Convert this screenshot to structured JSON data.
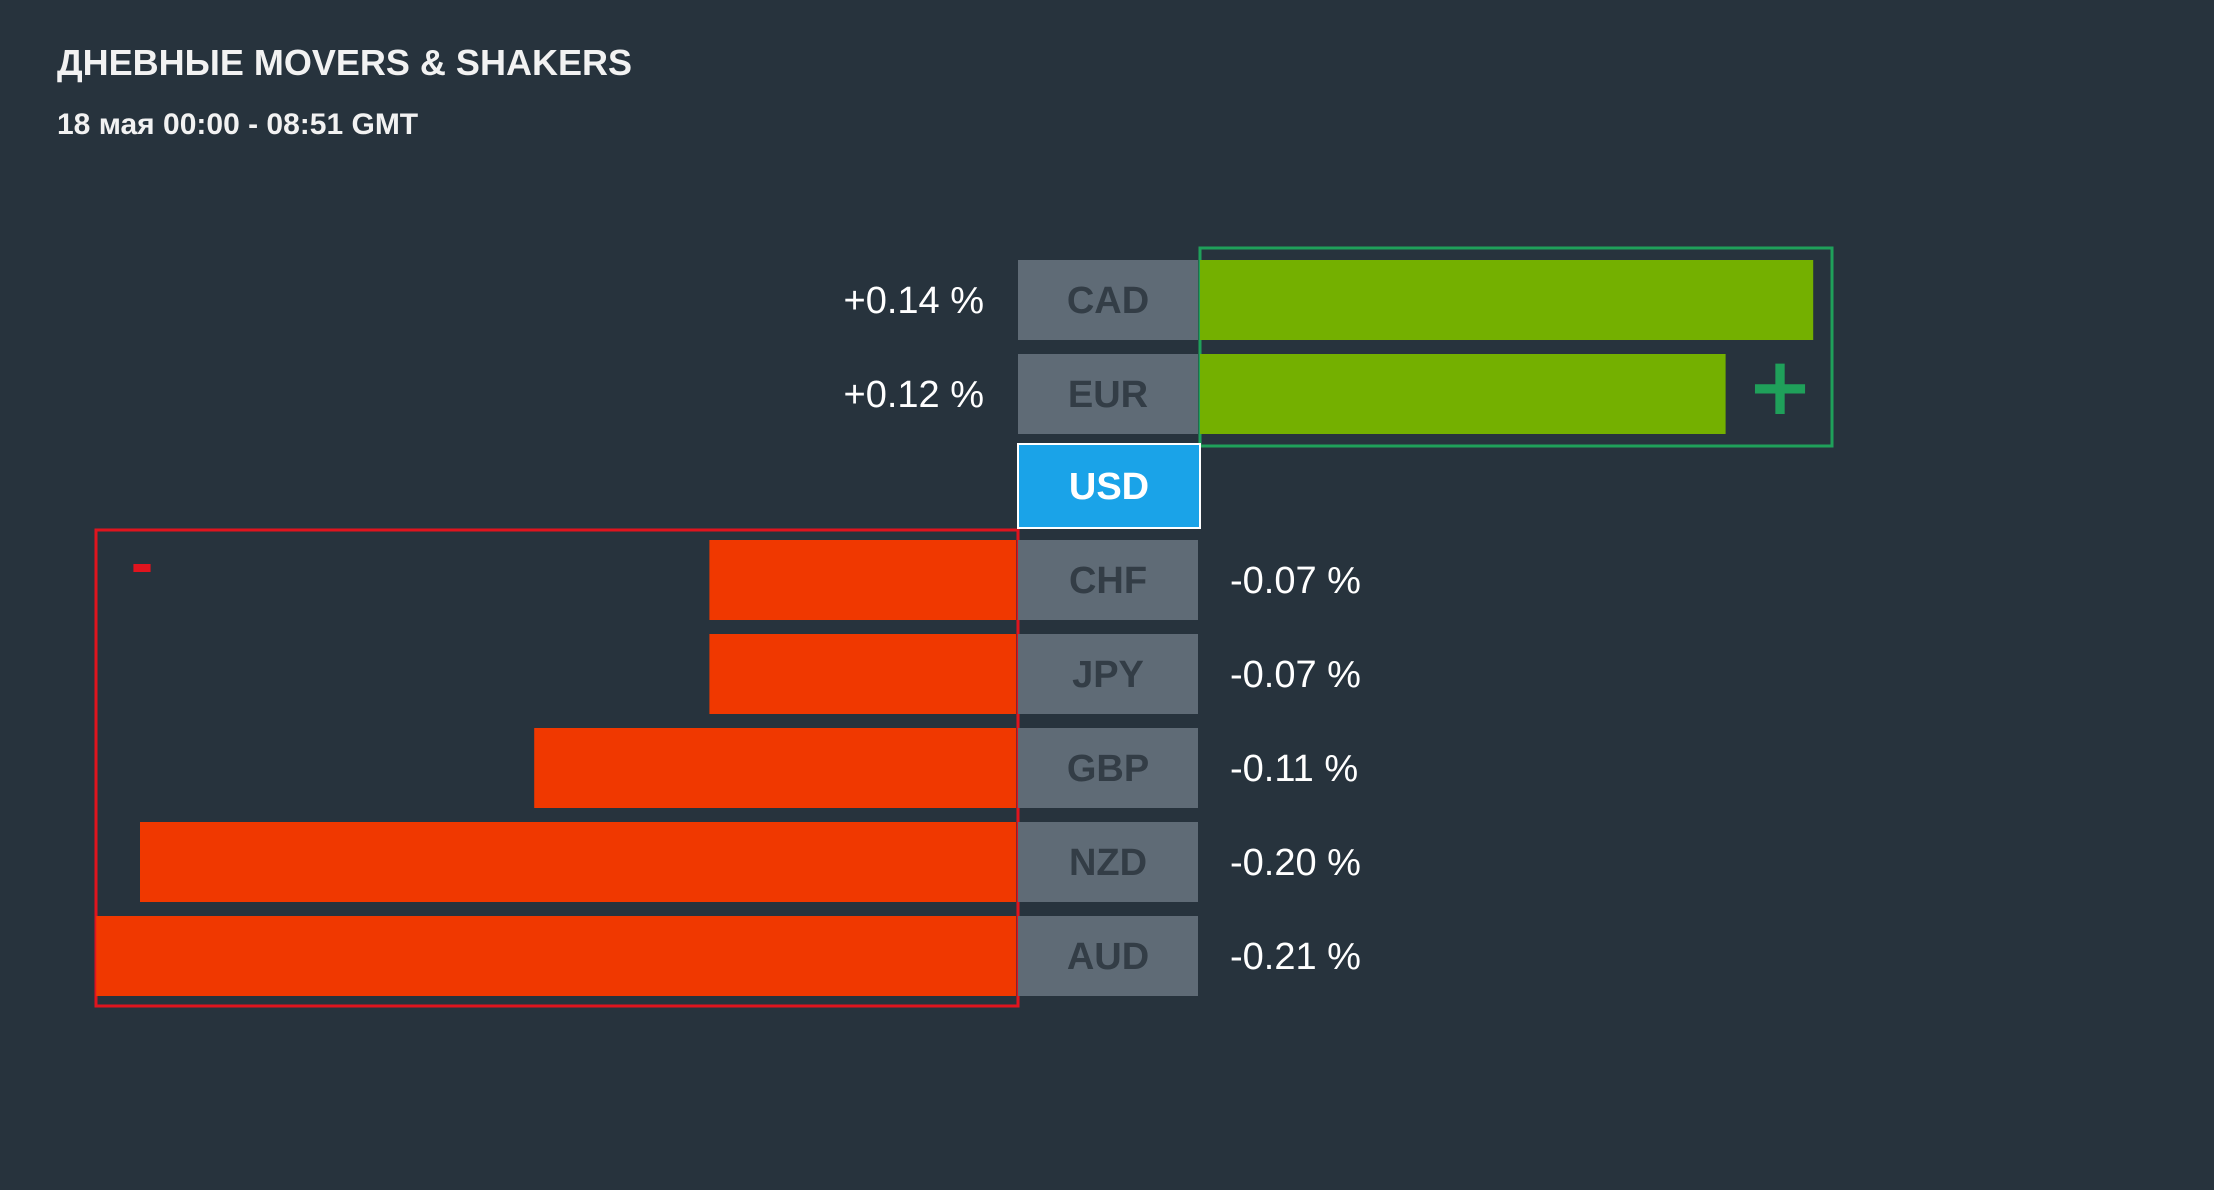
{
  "header": {
    "title": "ДНЕВНЫЕ MOVERS & SHAKERS",
    "subtitle": "18 мая 00:00 - 08:51 GMT"
  },
  "chart_data": {
    "type": "bar",
    "orientation": "horizontal-diverging",
    "base_currency": "USD",
    "unit": "%",
    "categories": [
      "CAD",
      "EUR",
      "CHF",
      "JPY",
      "GBP",
      "NZD",
      "AUD"
    ],
    "values": [
      0.14,
      0.12,
      -0.07,
      -0.07,
      -0.11,
      -0.2,
      -0.21
    ],
    "value_labels": [
      "+0.14 %",
      "+0.12 %",
      "-0.07 %",
      "-0.07 %",
      "-0.11 %",
      "-0.20 %",
      "-0.21 %"
    ],
    "positive_marker": "+",
    "negative_marker": "-",
    "colors": {
      "background": "#27333d",
      "positive_bar": "#74b000",
      "negative_bar": "#f03800",
      "positive_frame": "#1fa05a",
      "negative_frame": "#e0141e",
      "label_box": "#5f6b76",
      "label_text": "#333d46",
      "base_box": "#1aa3e8",
      "base_text": "#ffffff"
    }
  }
}
